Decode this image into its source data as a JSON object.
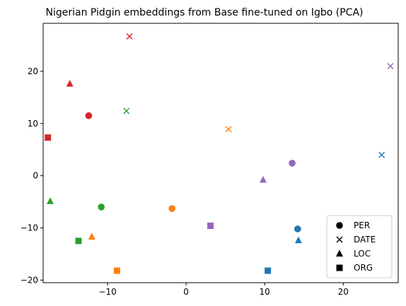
{
  "chart_data": {
    "type": "scatter",
    "title": "Nigerian Pidgin embeddings from Base fine-tuned on Igbo (PCA)",
    "xlabel": "",
    "ylabel": "",
    "xlim": [
      -18.2,
      27.0
    ],
    "ylim": [
      -20.5,
      29.2
    ],
    "x_ticks": [
      -10,
      0,
      10,
      20
    ],
    "y_ticks": [
      -20,
      -10,
      0,
      10,
      20
    ],
    "grid": false,
    "legend": {
      "placement": "bottom-right",
      "entries": [
        {
          "label": "PER",
          "marker": "circle"
        },
        {
          "label": "DATE",
          "marker": "x"
        },
        {
          "label": "LOC",
          "marker": "triangle"
        },
        {
          "label": "ORG",
          "marker": "square"
        }
      ]
    },
    "colors": {
      "blue": "#1f77b4",
      "orange": "#ff7f0e",
      "green": "#2ca02c",
      "red": "#d62728",
      "purple": "#9467bd"
    },
    "points": [
      {
        "x": 14.2,
        "y": -10.2,
        "marker": "circle",
        "color": "blue"
      },
      {
        "x": 24.9,
        "y": 4.0,
        "marker": "x",
        "color": "blue"
      },
      {
        "x": 14.3,
        "y": -12.4,
        "marker": "triangle",
        "color": "blue"
      },
      {
        "x": 10.4,
        "y": -18.2,
        "marker": "square",
        "color": "blue"
      },
      {
        "x": -1.8,
        "y": -6.3,
        "marker": "circle",
        "color": "orange"
      },
      {
        "x": 5.4,
        "y": 8.9,
        "marker": "x",
        "color": "orange"
      },
      {
        "x": -12.0,
        "y": -11.7,
        "marker": "triangle",
        "color": "orange"
      },
      {
        "x": -8.8,
        "y": -18.2,
        "marker": "square",
        "color": "orange"
      },
      {
        "x": -10.8,
        "y": -6.0,
        "marker": "circle",
        "color": "green"
      },
      {
        "x": -7.6,
        "y": 12.4,
        "marker": "x",
        "color": "green"
      },
      {
        "x": -17.3,
        "y": -4.9,
        "marker": "triangle",
        "color": "green"
      },
      {
        "x": -13.7,
        "y": -12.5,
        "marker": "square",
        "color": "green"
      },
      {
        "x": -12.4,
        "y": 11.5,
        "marker": "circle",
        "color": "red"
      },
      {
        "x": -7.2,
        "y": 26.7,
        "marker": "x",
        "color": "red"
      },
      {
        "x": -14.8,
        "y": 17.6,
        "marker": "triangle",
        "color": "red"
      },
      {
        "x": -17.6,
        "y": 7.3,
        "marker": "square",
        "color": "red"
      },
      {
        "x": 13.5,
        "y": 2.4,
        "marker": "circle",
        "color": "purple"
      },
      {
        "x": 26.0,
        "y": 21.0,
        "marker": "x",
        "color": "purple"
      },
      {
        "x": 9.8,
        "y": -0.8,
        "marker": "triangle",
        "color": "purple"
      },
      {
        "x": 3.1,
        "y": -9.6,
        "marker": "square",
        "color": "purple"
      }
    ]
  }
}
